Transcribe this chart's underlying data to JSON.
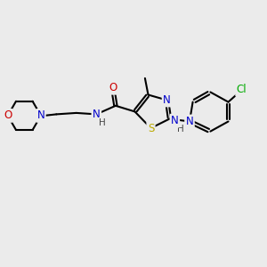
{
  "bg_color": "#ebebeb",
  "bond_color": "#000000",
  "bond_width": 1.5,
  "atom_colors": {
    "N": "#0000cc",
    "O": "#cc0000",
    "S": "#bbaa00",
    "Cl": "#00aa00",
    "C": "#000000",
    "H": "#444444"
  },
  "font_size": 8.5,
  "fig_size": [
    3.0,
    3.0
  ],
  "dpi": 100
}
